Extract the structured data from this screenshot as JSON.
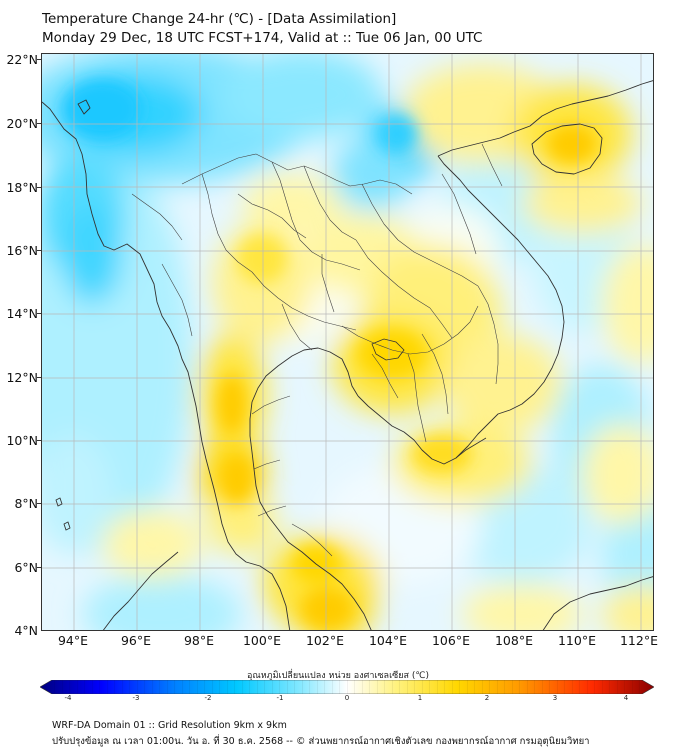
{
  "header": {
    "title_line1": "Temperature Change 24-hr (℃) - [Data Assimilation]",
    "title_line2": "Monday 29 Dec, 18 UTC FCST+174, Valid at :: Tue 06 Jan, 00 UTC"
  },
  "map": {
    "lat_labels": [
      "22°N",
      "20°N",
      "18°N",
      "16°N",
      "14°N",
      "12°N",
      "10°N",
      "8°N",
      "6°N",
      "4°N"
    ],
    "lon_labels": [
      "94°E",
      "96°E",
      "98°E",
      "100°E",
      "102°E",
      "104°E",
      "106°E",
      "108°E",
      "110°E",
      "112°E"
    ],
    "field_colors": {
      "cold": "#00c8ff",
      "cool": "#aef0ff",
      "neutral": "#f5fbff",
      "warm_light": "#fff7a8",
      "warm": "#ffe640",
      "hot": "#ffcc00"
    }
  },
  "colorbar": {
    "title": "อุณหภูมิเปลี่ยนแปลง หน่วย องศาเซลเซียส (℃)",
    "tick_labels": [
      "-4",
      "-3",
      "-2",
      "-1",
      "0",
      "1",
      "2",
      "3",
      "4"
    ],
    "range": [
      -4,
      4
    ],
    "colors": [
      "#00007f",
      "#0000ff",
      "#0080ff",
      "#00c8ff",
      "#7fe7ff",
      "#ffffff",
      "#fff27f",
      "#ffd700",
      "#ff9a00",
      "#ff2a00",
      "#8b0000"
    ]
  },
  "footer": {
    "line1": "WRF-DA Domain 01 :: Grid Resolution 9km x 9km",
    "line2": "ปรับปรุงข้อมูล ณ เวลา 01:00น. วัน อ. ที่ 30 ธ.ค. 2568 -- © ส่วนพยากรณ์อากาศเชิงตัวเลข กองพยากรณ์อากาศ กรมอุตุนิยมวิทยา"
  }
}
